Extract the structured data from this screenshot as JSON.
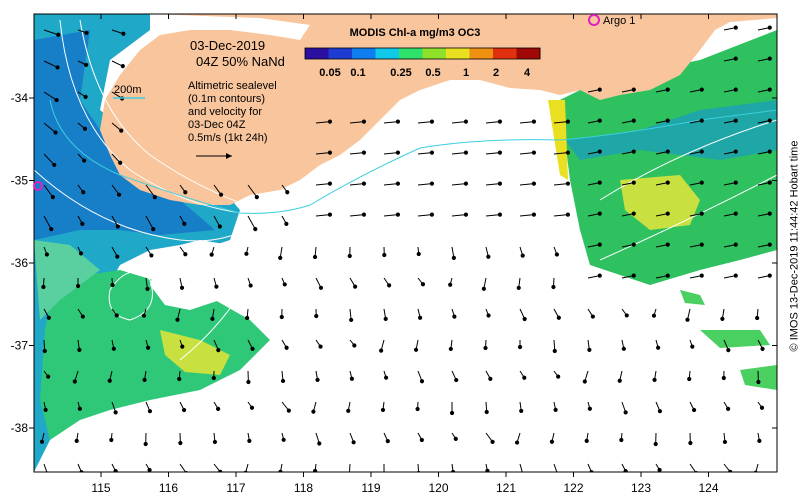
{
  "overlay": {
    "date_line": "03-Dec-2019",
    "time_line": "04Z  50% NaNd",
    "scale_label": "200m",
    "desc_lines": [
      "Altimetric sealevel",
      "(0.1m contours)",
      "and velocity for",
      "03-Dec 04Z",
      "0.5m/s (1kt 24h)"
    ],
    "argo_label": "Argo 1"
  },
  "colorbar": {
    "title": "MODIS Chl-a mg/m3 OC3",
    "tick_labels": [
      "0.05",
      "0.1",
      "0.25",
      "0.5",
      "1",
      "2",
      "4"
    ],
    "colors": [
      "#2a0fa0",
      "#1e3cd2",
      "#0f7ff0",
      "#10c8e8",
      "#2fe06a",
      "#8fe02a",
      "#e8e020",
      "#f09010",
      "#e03010",
      "#a00808"
    ]
  },
  "axes": {
    "x_ticks": [
      "115",
      "116",
      "117",
      "118",
      "119",
      "120",
      "121",
      "122",
      "123",
      "124"
    ],
    "y_ticks": [
      "-34",
      "-35",
      "-36",
      "-37",
      "-38"
    ]
  },
  "credit": "© IMOS 13-Dec-2019 11:44:42 Hobart time",
  "colors": {
    "land": "#f8c59c",
    "ocean_blank": "#ffffff",
    "contour": "#ffffff",
    "isobath": "#3ccfe0",
    "argo_marker": "#e020c0"
  }
}
